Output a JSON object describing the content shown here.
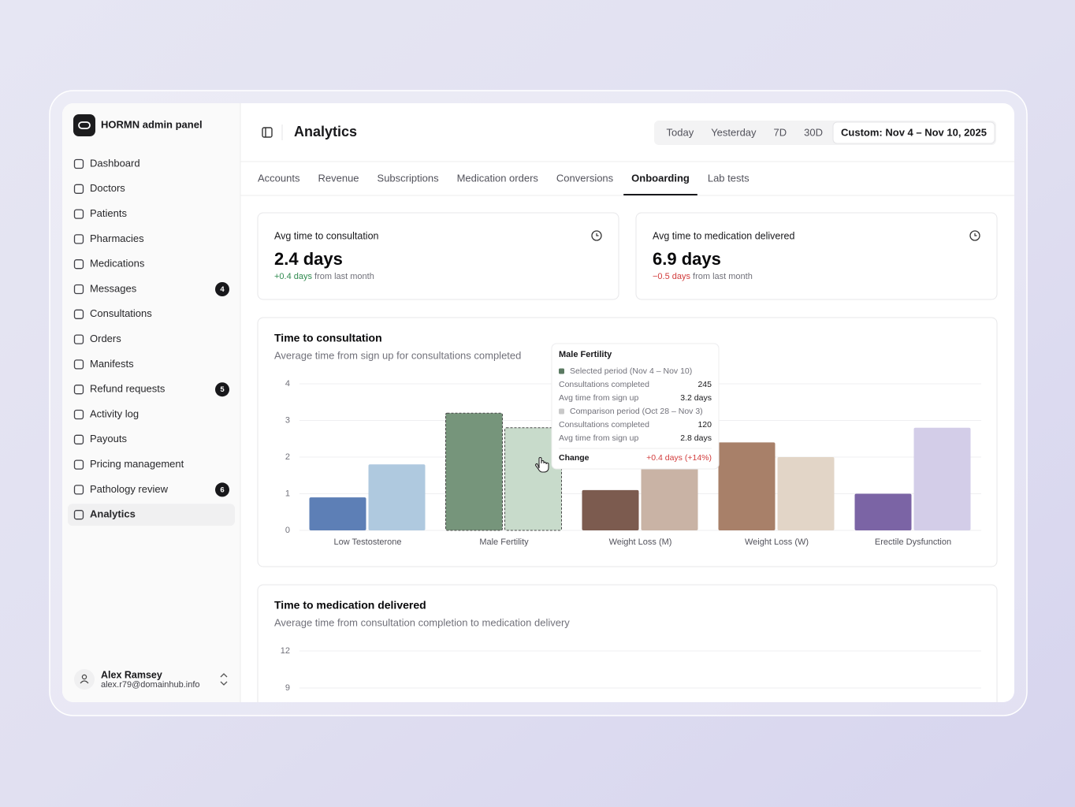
{
  "sidebar": {
    "brand": "HORMN admin panel",
    "nav": [
      {
        "label": "Dashboard"
      },
      {
        "label": "Doctors"
      },
      {
        "label": "Patients"
      },
      {
        "label": "Pharmacies"
      },
      {
        "label": "Medications"
      },
      {
        "label": "Messages",
        "badge": 4
      },
      {
        "label": "Consultations"
      },
      {
        "label": "Orders"
      },
      {
        "label": "Manifests"
      },
      {
        "label": "Refund requests",
        "badge": 5
      },
      {
        "label": "Activity log"
      },
      {
        "label": "Payouts"
      },
      {
        "label": "Pricing management"
      },
      {
        "label": "Pathology review",
        "badge": 6
      },
      {
        "label": "Analytics",
        "active": true
      }
    ],
    "user": {
      "name": "Alex Ramsey",
      "email": "alex.r79@domainhub.info"
    }
  },
  "header": {
    "title": "Analytics",
    "ranges": [
      {
        "label": "Today"
      },
      {
        "label": "Yesterday"
      },
      {
        "label": "7D"
      },
      {
        "label": "30D"
      },
      {
        "label": "Custom: Nov 4 – Nov 10, 2025",
        "active": true
      }
    ]
  },
  "tabs": [
    {
      "label": "Accounts"
    },
    {
      "label": "Revenue"
    },
    {
      "label": "Subscriptions"
    },
    {
      "label": "Medication orders"
    },
    {
      "label": "Conversions"
    },
    {
      "label": "Onboarding",
      "active": true
    },
    {
      "label": "Lab tests"
    }
  ],
  "stats": [
    {
      "title": "Avg time to consultation",
      "value": "2.4 days",
      "change": "+0.4 days",
      "change_suffix": "from last month",
      "trend": "up"
    },
    {
      "title": "Avg time to medication delivered",
      "value": "6.9 days",
      "change": "−0.5 days",
      "change_suffix": "from last month",
      "trend": "down"
    }
  ],
  "chart_data": [
    {
      "type": "bar",
      "title": "Time to consultation",
      "subtitle": "Average time from sign up for consultations completed",
      "categories": [
        "Low Testosterone",
        "Male Fertility",
        "Weight Loss (M)",
        "Weight Loss (W)",
        "Erectile Dysfunction"
      ],
      "series": [
        {
          "name": "Selected period (Nov 4 – Nov 10)",
          "color": "#5b7a62",
          "colors": [
            "#5d7fb6",
            "#76957b",
            "#7c5b4f",
            "#a88069",
            "#7b64a5"
          ],
          "values": [
            0.9,
            3.2,
            1.1,
            2.4,
            1.0
          ]
        },
        {
          "name": "Comparison period (Oct 28 – Nov 3)",
          "color": "#c9c9c9",
          "colors": [
            "#afc9df",
            "#c8dbcb",
            "#c9b3a5",
            "#e2d5c7",
            "#d3cde8"
          ],
          "values": [
            1.8,
            2.8,
            1.7,
            2.0,
            2.8
          ]
        }
      ],
      "ylim": [
        0,
        4
      ],
      "yticks": [
        0,
        1,
        2,
        3,
        4
      ],
      "grid": true,
      "tooltip": {
        "category_index": 1,
        "groups": [
          {
            "rows": [
              {
                "label": "Consultations completed",
                "value": "245"
              },
              {
                "label": "Avg time from sign up",
                "value": "3.2 days"
              }
            ]
          },
          {
            "rows": [
              {
                "label": "Consultations completed",
                "value": "120"
              },
              {
                "label": "Avg time from sign up",
                "value": "2.8 days"
              }
            ]
          }
        ],
        "change_label": "Change",
        "change": "+0.4 days (+14%)"
      }
    },
    {
      "type": "bar",
      "title": "Time to medication delivered",
      "subtitle": "Average time from consultation completion to medication delivery",
      "ylim": [
        0,
        12
      ],
      "yticks": [
        9,
        12
      ],
      "grid": true
    }
  ]
}
